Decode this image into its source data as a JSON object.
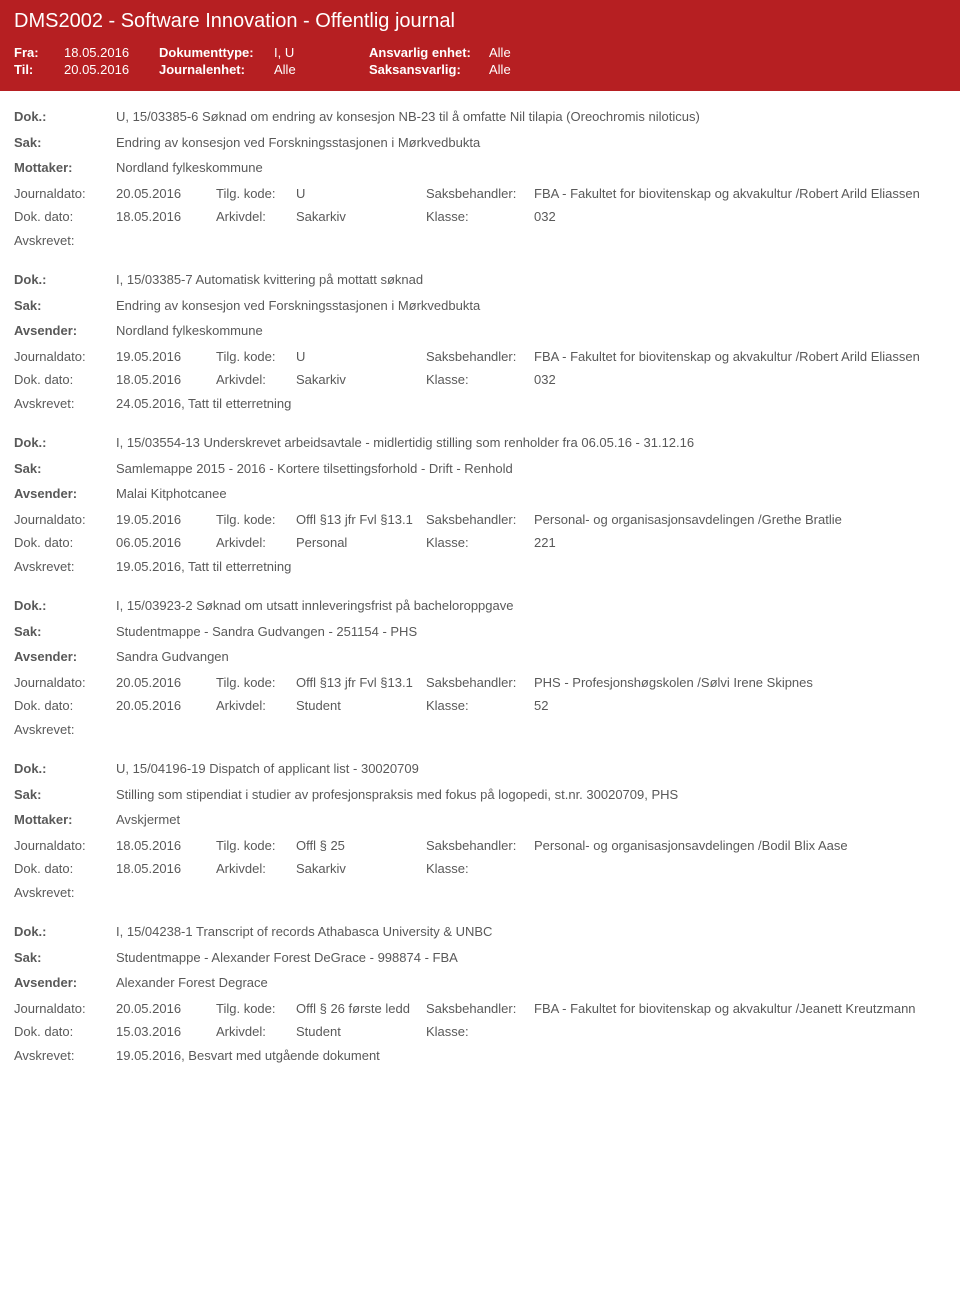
{
  "header": {
    "title": "DMS2002 - Software Innovation - Offentlig journal",
    "fra_label": "Fra:",
    "fra_value": "18.05.2016",
    "til_label": "Til:",
    "til_value": "20.05.2016",
    "doktype_label": "Dokumenttype:",
    "doktype_value": "I, U",
    "journ_label": "Journalenhet:",
    "journ_value": "Alle",
    "ansv_label": "Ansvarlig enhet:",
    "ansv_value": "Alle",
    "saks_label": "Saksansvarlig:",
    "saks_value": "Alle"
  },
  "labels": {
    "dok": "Dok.:",
    "sak": "Sak:",
    "mottaker": "Mottaker:",
    "avsender": "Avsender:",
    "journaldato": "Journaldato:",
    "dokdato": "Dok. dato:",
    "avskrevet": "Avskrevet:",
    "tilgkode": "Tilg. kode:",
    "arkivdel": "Arkivdel:",
    "saksbehandler": "Saksbehandler:",
    "klasse": "Klasse:"
  },
  "entries": [
    {
      "dok": "U, 15/03385-6 Søknad om endring av konsesjon NB-23 til å omfatte Nil tilapia (Oreochromis niloticus)",
      "sak": "Endring av konsesjon ved Forskningsstasjonen i Mørkvedbukta",
      "party_label": "Mottaker:",
      "party_value": "Nordland fylkeskommune",
      "journaldato": "20.05.2016",
      "tilgkode": "U",
      "saksbehandler": "FBA - Fakultet for biovitenskap og akvakultur  /Robert Arild Eliassen",
      "dokdato": "18.05.2016",
      "arkivdel": "Sakarkiv",
      "klasse": "032",
      "avskrevet": ""
    },
    {
      "dok": "I, 15/03385-7 Automatisk kvittering på mottatt søknad",
      "sak": "Endring av konsesjon ved Forskningsstasjonen i Mørkvedbukta",
      "party_label": "Avsender:",
      "party_value": "Nordland fylkeskommune",
      "journaldato": "19.05.2016",
      "tilgkode": "U",
      "saksbehandler": "FBA - Fakultet for biovitenskap og akvakultur  /Robert Arild Eliassen",
      "dokdato": "18.05.2016",
      "arkivdel": "Sakarkiv",
      "klasse": "032",
      "avskrevet": "24.05.2016, Tatt til etterretning"
    },
    {
      "dok": "I, 15/03554-13 Underskrevet arbeidsavtale - midlertidig stilling som renholder fra 06.05.16 - 31.12.16",
      "sak": "Samlemappe 2015 - 2016 - Kortere tilsettingsforhold - Drift - Renhold",
      "party_label": "Avsender:",
      "party_value": "Malai Kitphotcanee",
      "journaldato": "19.05.2016",
      "tilgkode": "Offl §13 jfr Fvl §13.1",
      "saksbehandler": "Personal- og organisasjonsavdelingen /Grethe Bratlie",
      "dokdato": "06.05.2016",
      "arkivdel": "Personal",
      "klasse": "221",
      "avskrevet": "19.05.2016, Tatt til etterretning"
    },
    {
      "dok": "I, 15/03923-2 Søknad om utsatt innleveringsfrist på bacheloroppgave",
      "sak": "Studentmappe - Sandra Gudvangen - 251154 - PHS",
      "party_label": "Avsender:",
      "party_value": "Sandra Gudvangen",
      "journaldato": "20.05.2016",
      "tilgkode": "Offl §13 jfr Fvl §13.1",
      "saksbehandler": "PHS - Profesjonshøgskolen /Sølvi Irene Skipnes",
      "dokdato": "20.05.2016",
      "arkivdel": "Student",
      "klasse": "52",
      "avskrevet": ""
    },
    {
      "dok": "U, 15/04196-19 Dispatch of applicant list - 30020709",
      "sak": "Stilling som stipendiat i studier av profesjonspraksis med fokus på logopedi, st.nr. 30020709, PHS",
      "party_label": "Mottaker:",
      "party_value": "Avskjermet",
      "journaldato": "18.05.2016",
      "tilgkode": "Offl § 25",
      "saksbehandler": "Personal- og organisasjonsavdelingen /Bodil Blix Aase",
      "dokdato": "18.05.2016",
      "arkivdel": "Sakarkiv",
      "klasse": "",
      "avskrevet": ""
    },
    {
      "dok": "I, 15/04238-1 Transcript of records Athabasca University & UNBC",
      "sak": "Studentmappe - Alexander Forest DeGrace - 998874 - FBA",
      "party_label": "Avsender:",
      "party_value": "Alexander Forest Degrace",
      "journaldato": "20.05.2016",
      "tilgkode": "Offl § 26 første ledd",
      "saksbehandler": "FBA - Fakultet for biovitenskap og akvakultur  /Jeanett Kreutzmann",
      "dokdato": "15.03.2016",
      "arkivdel": "Student",
      "klasse": "",
      "avskrevet": "19.05.2016, Besvart med utgående dokument"
    }
  ]
}
